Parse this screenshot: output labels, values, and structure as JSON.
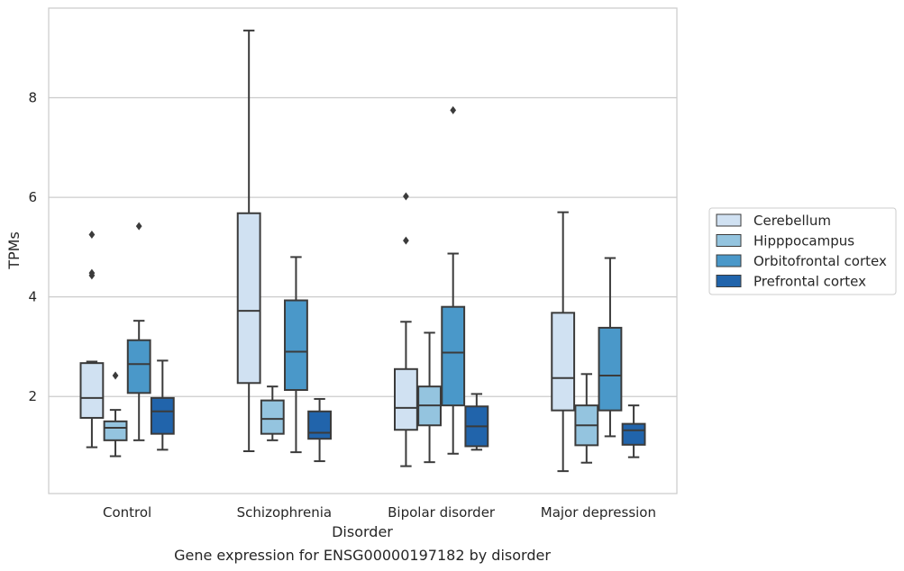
{
  "chart_data": {
    "type": "boxplot",
    "title": "",
    "caption": "Gene expression for ENSG00000197182 by disorder",
    "xlabel": "Disorder",
    "ylabel": "TPMs",
    "ylim": [
      0.05,
      9.8
    ],
    "yticks": [
      2,
      4,
      6,
      8
    ],
    "grid": true,
    "legend_position": "right",
    "categories": [
      "Control",
      "Schizophrenia",
      "Bipolar disorder",
      "Major depression"
    ],
    "series": [
      {
        "name": "Cerebellum",
        "color": "#d0e1f2",
        "boxes": [
          {
            "whislo": 0.98,
            "q1": 1.57,
            "med": 1.97,
            "q3": 2.67,
            "whishi": 2.7,
            "fliers": [
              4.43,
              4.48,
              5.25
            ]
          },
          {
            "whislo": 0.9,
            "q1": 2.27,
            "med": 3.72,
            "q3": 5.68,
            "whishi": 9.35,
            "fliers": []
          },
          {
            "whislo": 0.6,
            "q1": 1.33,
            "med": 1.77,
            "q3": 2.55,
            "whishi": 3.5,
            "fliers": [
              5.13,
              6.02
            ]
          },
          {
            "whislo": 0.5,
            "q1": 1.72,
            "med": 2.37,
            "q3": 3.68,
            "whishi": 5.7,
            "fliers": []
          }
        ]
      },
      {
        "name": "Hipppocampus",
        "color": "#94c4df",
        "boxes": [
          {
            "whislo": 0.8,
            "q1": 1.12,
            "med": 1.37,
            "q3": 1.5,
            "whishi": 1.73,
            "fliers": [
              2.42
            ]
          },
          {
            "whislo": 1.12,
            "q1": 1.25,
            "med": 1.55,
            "q3": 1.92,
            "whishi": 2.2,
            "fliers": []
          },
          {
            "whislo": 0.68,
            "q1": 1.42,
            "med": 1.82,
            "q3": 2.2,
            "whishi": 3.28,
            "fliers": []
          },
          {
            "whislo": 0.67,
            "q1": 1.02,
            "med": 1.42,
            "q3": 1.82,
            "whishi": 2.45,
            "fliers": []
          }
        ]
      },
      {
        "name": "Orbitofrontal cortex",
        "color": "#4a98c9",
        "boxes": [
          {
            "whislo": 1.12,
            "q1": 2.07,
            "med": 2.65,
            "q3": 3.13,
            "whishi": 3.52,
            "fliers": [
              5.42
            ]
          },
          {
            "whislo": 0.88,
            "q1": 2.13,
            "med": 2.9,
            "q3": 3.93,
            "whishi": 4.8,
            "fliers": []
          },
          {
            "whislo": 0.85,
            "q1": 1.82,
            "med": 2.88,
            "q3": 3.8,
            "whishi": 4.87,
            "fliers": [
              7.75
            ]
          },
          {
            "whislo": 1.2,
            "q1": 1.72,
            "med": 2.42,
            "q3": 3.38,
            "whishi": 4.78,
            "fliers": []
          }
        ]
      },
      {
        "name": "Prefrontal cortex",
        "color": "#2164ab",
        "boxes": [
          {
            "whislo": 0.93,
            "q1": 1.25,
            "med": 1.7,
            "q3": 1.97,
            "whishi": 2.72,
            "fliers": []
          },
          {
            "whislo": 0.7,
            "q1": 1.15,
            "med": 1.27,
            "q3": 1.7,
            "whishi": 1.95,
            "fliers": []
          },
          {
            "whislo": 0.93,
            "q1": 1.0,
            "med": 1.4,
            "q3": 1.8,
            "whishi": 2.05,
            "fliers": []
          },
          {
            "whislo": 0.78,
            "q1": 1.03,
            "med": 1.32,
            "q3": 1.45,
            "whishi": 1.82,
            "fliers": []
          }
        ]
      }
    ]
  }
}
